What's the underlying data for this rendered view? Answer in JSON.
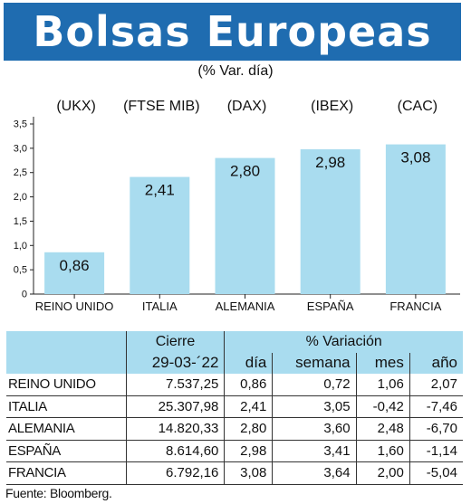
{
  "title": "Bolsas Europeas",
  "subtitle": "(% Var. día)",
  "chart_data": {
    "type": "bar",
    "categories": [
      "REINO UNIDO",
      "ITALIA",
      "ALEMANIA",
      "ESPAÑA",
      "FRANCIA"
    ],
    "index_labels": [
      "(UKX)",
      "(FTSE MIB)",
      "(DAX)",
      "(IBEX)",
      "(CAC)"
    ],
    "values": [
      0.86,
      2.41,
      2.8,
      2.98,
      3.08
    ],
    "value_labels": [
      "0,86",
      "2,41",
      "2,80",
      "2,98",
      "3,08"
    ],
    "yticks": [
      "0",
      "0,5",
      "1,0",
      "1,5",
      "2,0",
      "2,5",
      "3,0",
      "3,5"
    ],
    "ylim": [
      0,
      3.5
    ],
    "bar_color": "#a9dcef",
    "grid": false
  },
  "table": {
    "header_cierre": "Cierre",
    "header_variacion": "% Variación",
    "date": "29-03-´22",
    "col_dia": "día",
    "col_semana": "semana",
    "col_mes": "mes",
    "col_anio": "año",
    "rows": [
      {
        "name": "REINO UNIDO",
        "cierre": "7.537,25",
        "dia": "0,86",
        "semana": "0,72",
        "mes": "1,06",
        "anio": "2,07"
      },
      {
        "name": "ITALIA",
        "cierre": "25.307,98",
        "dia": "2,41",
        "semana": "3,05",
        "mes": "-0,42",
        "anio": "-7,46"
      },
      {
        "name": "ALEMANIA",
        "cierre": "14.820,33",
        "dia": "2,80",
        "semana": "3,60",
        "mes": "2,48",
        "anio": "-6,70"
      },
      {
        "name": "ESPAÑA",
        "cierre": "8.614,60",
        "dia": "2,98",
        "semana": "3,41",
        "mes": "1,60",
        "anio": "-1,14"
      },
      {
        "name": "FRANCIA",
        "cierre": "6.792,16",
        "dia": "3,08",
        "semana": "3,64",
        "mes": "2,00",
        "anio": "-5,04"
      }
    ]
  },
  "source": "Fuente: Bloomberg."
}
